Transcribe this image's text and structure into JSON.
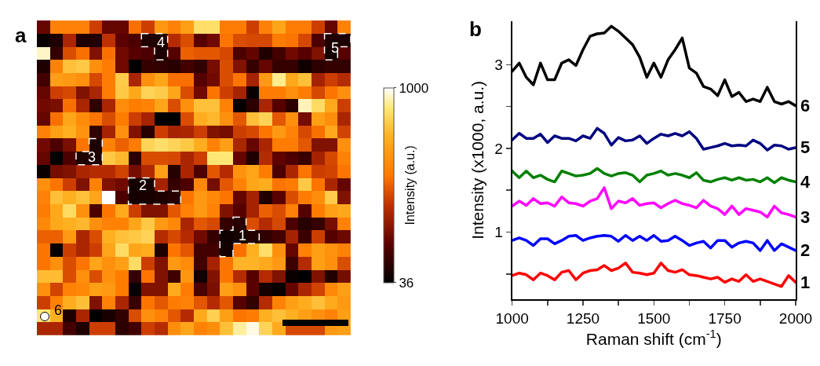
{
  "chart_data": [
    {
      "type": "heatmap",
      "tick_labels": false,
      "clabel": "Intensity (a.u.)",
      "clim": [
        36,
        1000
      ],
      "cticks": [
        36,
        1000
      ],
      "annotations": [
        "a",
        "1",
        "2",
        "3",
        "4",
        "5",
        "6"
      ],
      "categories": [
        null,
        null,
        null,
        null,
        null,
        null,
        null,
        null,
        null,
        null,
        null,
        null,
        null,
        null,
        null,
        null,
        null,
        null,
        null,
        null,
        null,
        null,
        null,
        null
      ],
      "y_categories": [
        null,
        null,
        null,
        null,
        null,
        null,
        null,
        null,
        null,
        null,
        null,
        null,
        null,
        null,
        null,
        null,
        null,
        null,
        null,
        null,
        null,
        null,
        null,
        null
      ],
      "cells": [
        [
          250,
          600,
          600,
          600,
          450,
          250,
          250,
          550,
          450,
          680,
          600,
          700,
          880,
          880,
          580,
          580,
          450,
          600,
          720,
          580,
          580,
          450,
          250,
          600
        ],
        [
          60,
          100,
          380,
          100,
          110,
          420,
          230,
          200,
          100,
          100,
          400,
          480,
          220,
          270,
          560,
          480,
          470,
          470,
          580,
          560,
          470,
          200,
          100,
          100
        ],
        [
          960,
          150,
          480,
          550,
          300,
          550,
          270,
          220,
          200,
          100,
          220,
          520,
          500,
          500,
          470,
          200,
          250,
          100,
          180,
          270,
          220,
          300,
          80,
          220
        ],
        [
          100,
          600,
          800,
          820,
          650,
          580,
          270,
          36,
          150,
          140,
          120,
          180,
          140,
          280,
          480,
          300,
          150,
          250,
          150,
          150,
          70,
          130,
          150,
          140
        ],
        [
          180,
          700,
          680,
          650,
          470,
          580,
          830,
          380,
          650,
          720,
          550,
          550,
          220,
          270,
          480,
          560,
          370,
          680,
          920,
          730,
          800,
          370,
          450,
          400
        ],
        [
          250,
          450,
          470,
          300,
          380,
          580,
          820,
          730,
          850,
          830,
          720,
          480,
          270,
          560,
          450,
          370,
          60,
          580,
          580,
          650,
          580,
          470,
          560,
          650
        ],
        [
          270,
          290,
          550,
          380,
          140,
          380,
          640,
          580,
          600,
          720,
          480,
          650,
          800,
          800,
          600,
          50,
          130,
          380,
          220,
          130,
          950,
          870,
          730,
          450
        ],
        [
          250,
          550,
          720,
          630,
          560,
          480,
          580,
          450,
          370,
          36,
          36,
          480,
          750,
          780,
          650,
          500,
          800,
          850,
          500,
          650,
          280,
          700,
          640,
          380
        ],
        [
          600,
          700,
          760,
          660,
          140,
          370,
          650,
          300,
          120,
          450,
          370,
          380,
          450,
          300,
          280,
          450,
          470,
          560,
          680,
          600,
          470,
          550,
          730,
          460
        ],
        [
          270,
          200,
          290,
          560,
          100,
          600,
          520,
          580,
          850,
          880,
          850,
          820,
          750,
          600,
          700,
          380,
          250,
          380,
          580,
          580,
          500,
          300,
          300,
          650
        ],
        [
          250,
          36,
          200,
          100,
          100,
          820,
          780,
          130,
          480,
          480,
          470,
          380,
          450,
          900,
          900,
          250,
          100,
          400,
          240,
          200,
          160,
          370,
          470,
          600
        ],
        [
          60,
          280,
          300,
          380,
          400,
          400,
          460,
          280,
          390,
          700,
          120,
          380,
          200,
          500,
          400,
          660,
          720,
          580,
          200,
          380,
          560,
          450,
          460,
          560
        ],
        [
          650,
          560,
          450,
          300,
          600,
          300,
          270,
          80,
          80,
          370,
          150,
          200,
          620,
          280,
          500,
          600,
          720,
          750,
          560,
          580,
          820,
          560,
          380,
          250
        ],
        [
          600,
          800,
          760,
          800,
          720,
          1000,
          200,
          80,
          90,
          100,
          120,
          560,
          680,
          620,
          560,
          250,
          370,
          100,
          230,
          480,
          580,
          640,
          830,
          300
        ],
        [
          580,
          730,
          870,
          650,
          200,
          560,
          740,
          450,
          300,
          300,
          500,
          600,
          680,
          600,
          300,
          220,
          370,
          520,
          480,
          600,
          220,
          580,
          700,
          730
        ],
        [
          620,
          730,
          760,
          780,
          650,
          600,
          600,
          720,
          820,
          680,
          620,
          380,
          500,
          470,
          150,
          120,
          480,
          400,
          470,
          200,
          120,
          150,
          280,
          600
        ],
        [
          520,
          520,
          680,
          380,
          480,
          760,
          800,
          820,
          850,
          400,
          470,
          400,
          270,
          150,
          70,
          80,
          110,
          140,
          180,
          370,
          160,
          450,
          220,
          260
        ],
        [
          560,
          50,
          450,
          380,
          450,
          720,
          870,
          720,
          750,
          100,
          560,
          500,
          180,
          180,
          80,
          550,
          760,
          880,
          650,
          250,
          600,
          700,
          660,
          600
        ],
        [
          560,
          650,
          480,
          560,
          720,
          650,
          700,
          870,
          450,
          300,
          680,
          630,
          170,
          370,
          560,
          770,
          770,
          740,
          680,
          170,
          400,
          700,
          650,
          480
        ],
        [
          790,
          790,
          480,
          650,
          480,
          650,
          580,
          150,
          560,
          300,
          170,
          670,
          70,
          300,
          560,
          400,
          220,
          400,
          300,
          60,
          36,
          300,
          110,
          280
        ],
        [
          650,
          460,
          600,
          620,
          700,
          680,
          580,
          60,
          300,
          300,
          740,
          580,
          190,
          290,
          700,
          650,
          230,
          80,
          50,
          250,
          380,
          460,
          620,
          700
        ],
        [
          450,
          600,
          750,
          800,
          300,
          600,
          380,
          160,
          560,
          500,
          580,
          600,
          500,
          400,
          500,
          220,
          140,
          400,
          600,
          700,
          750,
          800,
          740,
          680
        ],
        [
          900,
          760,
          100,
          380,
          40,
          90,
          140,
          480,
          650,
          600,
          500,
          400,
          740,
          840,
          700,
          560,
          580,
          760,
          800,
          760,
          700,
          650,
          600,
          700
        ],
        [
          380,
          380,
          180,
          100,
          450,
          450,
          130,
          180,
          450,
          400,
          640,
          720,
          600,
          640,
          800,
          930,
          980,
          850,
          740,
          470,
          470,
          470,
          680,
          700
        ]
      ]
    },
    {
      "type": "line",
      "xlabel": "Raman shift (cm$^{-1}$)",
      "ylabel": "Intensity (x1000, a.u.)",
      "annotations": [
        "b"
      ],
      "xlim": [
        1000,
        2000
      ],
      "ylim": [
        0.2,
        3.52
      ],
      "grid": false,
      "legend": false,
      "marker": "none",
      "line_style": "solid",
      "xticks": [
        1000,
        {
          "value": 1125,
          "label": null
        },
        1250,
        {
          "value": 1375,
          "label": null
        },
        1500,
        {
          "value": 1625,
          "label": null
        },
        1750,
        {
          "value": 1875,
          "label": null
        },
        2000
      ],
      "yticks": [
        {
          "value": 0.5,
          "label": null
        },
        1,
        {
          "value": 1.5,
          "label": null
        },
        2,
        {
          "value": 2.5,
          "label": null
        },
        3
      ],
      "x": [
        1000,
        1025,
        1050,
        1075,
        1100,
        1125,
        1150,
        1175,
        1200,
        1225,
        1250,
        1275,
        1300,
        1325,
        1350,
        1375,
        1400,
        1425,
        1450,
        1475,
        1500,
        1525,
        1550,
        1575,
        1600,
        1625,
        1650,
        1675,
        1700,
        1725,
        1750,
        1775,
        1800,
        1825,
        1850,
        1875,
        1900,
        1925,
        1950,
        1975,
        2000
      ],
      "series": [
        {
          "name": "1",
          "color": "#ff0000",
          "values": [
            0.48,
            0.51,
            0.49,
            0.43,
            0.51,
            0.48,
            0.43,
            0.52,
            0.54,
            0.43,
            0.51,
            0.54,
            0.55,
            0.6,
            0.54,
            0.57,
            0.63,
            0.52,
            0.51,
            0.49,
            0.51,
            0.63,
            0.54,
            0.52,
            0.55,
            0.49,
            0.48,
            0.46,
            0.44,
            0.46,
            0.4,
            0.44,
            0.41,
            0.49,
            0.41,
            0.44,
            0.41,
            0.38,
            0.35,
            0.48,
            0.4
          ]
        },
        {
          "name": "2",
          "color": "#0000ff",
          "values": [
            0.9,
            0.93,
            0.9,
            0.84,
            0.92,
            0.92,
            0.86,
            0.9,
            0.95,
            0.96,
            0.9,
            0.93,
            0.95,
            0.96,
            0.95,
            0.89,
            0.96,
            0.9,
            0.95,
            0.9,
            0.96,
            0.89,
            0.9,
            0.95,
            0.9,
            0.84,
            0.87,
            0.89,
            0.81,
            0.9,
            0.9,
            0.82,
            0.87,
            0.89,
            0.87,
            0.78,
            0.9,
            0.78,
            0.86,
            0.82,
            0.78
          ]
        },
        {
          "name": "3",
          "color": "#ff00ff",
          "values": [
            1.31,
            1.37,
            1.32,
            1.4,
            1.34,
            1.35,
            1.31,
            1.42,
            1.35,
            1.34,
            1.31,
            1.37,
            1.4,
            1.53,
            1.28,
            1.37,
            1.35,
            1.4,
            1.32,
            1.34,
            1.35,
            1.29,
            1.34,
            1.38,
            1.34,
            1.32,
            1.29,
            1.38,
            1.31,
            1.28,
            1.21,
            1.31,
            1.21,
            1.28,
            1.26,
            1.24,
            1.18,
            1.31,
            1.23,
            1.21,
            1.18
          ]
        },
        {
          "name": "4",
          "color": "#008000",
          "values": [
            1.73,
            1.65,
            1.73,
            1.65,
            1.68,
            1.63,
            1.6,
            1.73,
            1.7,
            1.67,
            1.68,
            1.7,
            1.76,
            1.7,
            1.67,
            1.7,
            1.71,
            1.68,
            1.6,
            1.68,
            1.7,
            1.73,
            1.68,
            1.7,
            1.68,
            1.65,
            1.71,
            1.62,
            1.6,
            1.63,
            1.65,
            1.62,
            1.65,
            1.62,
            1.63,
            1.6,
            1.65,
            1.59,
            1.65,
            1.62,
            1.6
          ]
        },
        {
          "name": "5",
          "color": "#000080",
          "values": [
            2.1,
            2.18,
            2.12,
            2.12,
            2.17,
            2.07,
            2.15,
            2.12,
            2.12,
            2.09,
            2.15,
            2.12,
            2.24,
            2.18,
            2.04,
            2.13,
            2.09,
            2.1,
            2.15,
            2.06,
            2.12,
            2.17,
            2.15,
            2.18,
            2.15,
            2.2,
            2.12,
            1.99,
            2.01,
            2.03,
            2.06,
            2.03,
            2.04,
            2.03,
            2.1,
            2.06,
            1.98,
            2.04,
            2.03,
            1.99,
            2.01
          ]
        },
        {
          "name": "6",
          "color": "#000000",
          "values": [
            2.92,
            3.02,
            2.85,
            2.76,
            3.02,
            2.82,
            2.82,
            3.02,
            3.06,
            2.99,
            3.18,
            3.34,
            3.37,
            3.38,
            3.46,
            3.4,
            3.32,
            3.24,
            3.09,
            2.85,
            3.02,
            2.85,
            3.06,
            3.18,
            3.32,
            2.96,
            2.9,
            2.74,
            2.71,
            2.63,
            2.82,
            2.62,
            2.67,
            2.56,
            2.59,
            2.56,
            2.73,
            2.56,
            2.53,
            2.56,
            2.51
          ]
        }
      ]
    }
  ]
}
